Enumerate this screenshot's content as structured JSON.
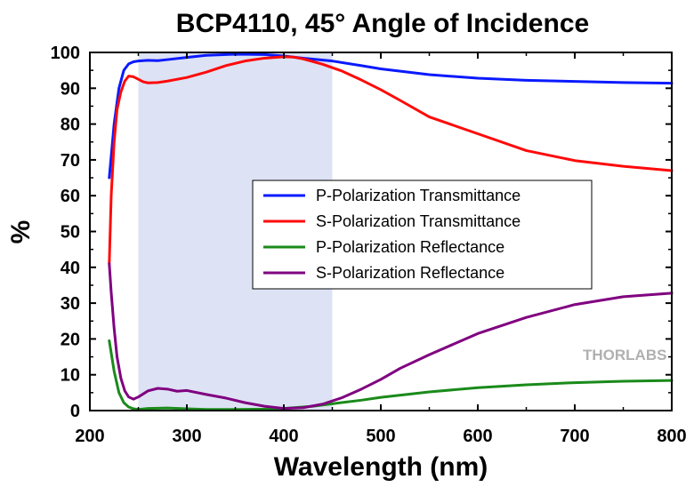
{
  "chart_data": {
    "type": "line",
    "title": "BCP4110, 45° Angle of Incidence",
    "xlabel": "Wavelength (nm)",
    "ylabel": "%",
    "xlim": [
      200,
      800
    ],
    "ylim": [
      0,
      100
    ],
    "x_ticks": [
      "200",
      "300",
      "400",
      "500",
      "600",
      "700",
      "800"
    ],
    "y_ticks": [
      "0",
      "10",
      "20",
      "30",
      "40",
      "50",
      "60",
      "70",
      "80",
      "90",
      "100"
    ],
    "grid": false,
    "legend_position": "center-right",
    "highlight_band": {
      "x_range": [
        250,
        450
      ],
      "color": "#dde3f4"
    },
    "watermark": "THORLABS",
    "series": [
      {
        "name": "P-Polarization Transmittance",
        "color": "#0a1aff",
        "x": [
          220,
          225,
          230,
          235,
          240,
          245,
          250,
          260,
          270,
          280,
          300,
          320,
          350,
          380,
          400,
          420,
          450,
          480,
          500,
          550,
          600,
          650,
          700,
          750,
          800
        ],
        "y": [
          65,
          80,
          90,
          95,
          96.8,
          97.4,
          97.6,
          97.8,
          97.7,
          98,
          98.6,
          99.2,
          99.5,
          99.4,
          99,
          98.4,
          97.6,
          96.3,
          95.4,
          93.8,
          92.8,
          92.2,
          91.9,
          91.6,
          91.4
        ]
      },
      {
        "name": "S-Polarization Transmittance",
        "color": "#ff0a0a",
        "x": [
          220,
          222,
          225,
          228,
          232,
          236,
          240,
          245,
          250,
          255,
          260,
          270,
          280,
          300,
          320,
          340,
          360,
          380,
          400,
          410,
          420,
          440,
          460,
          480,
          500,
          520,
          550,
          600,
          650,
          700,
          750,
          800
        ],
        "y": [
          41,
          60,
          75,
          84,
          89,
          92,
          93.4,
          93.2,
          92.5,
          91.8,
          91.5,
          91.6,
          92,
          93,
          94.5,
          96.3,
          97.6,
          98.4,
          98.8,
          98.7,
          98.2,
          96.7,
          94.8,
          92.3,
          89.6,
          86.6,
          82,
          77.3,
          72.6,
          69.8,
          68.2,
          67
        ]
      },
      {
        "name": "P-Polarization Reflectance",
        "color": "#1a8a1a",
        "x": [
          220,
          225,
          230,
          235,
          240,
          245,
          250,
          260,
          280,
          300,
          320,
          350,
          380,
          400,
          430,
          450,
          480,
          500,
          550,
          600,
          650,
          700,
          750,
          800
        ],
        "y": [
          19.5,
          11,
          5,
          2.2,
          1,
          0.5,
          0.3,
          0.6,
          0.7,
          0.5,
          0.3,
          0.3,
          0.4,
          0.6,
          1.2,
          1.9,
          2.9,
          3.7,
          5.2,
          6.4,
          7.2,
          7.8,
          8.2,
          8.4
        ]
      },
      {
        "name": "S-Polarization Reflectance",
        "color": "#800080",
        "x": [
          220,
          222,
          225,
          228,
          232,
          236,
          240,
          245,
          250,
          260,
          270,
          280,
          290,
          300,
          320,
          340,
          360,
          380,
          400,
          420,
          440,
          460,
          480,
          500,
          520,
          550,
          600,
          650,
          700,
          750,
          800
        ],
        "y": [
          41,
          33,
          23,
          15,
          9,
          5.5,
          3.8,
          3.2,
          3.8,
          5.5,
          6.2,
          6,
          5.4,
          5.6,
          4.5,
          3.5,
          2.2,
          1.2,
          0.6,
          0.8,
          1.8,
          3.6,
          6,
          8.7,
          11.8,
          15.6,
          21.5,
          26,
          29.6,
          31.8,
          32.8
        ]
      }
    ]
  }
}
